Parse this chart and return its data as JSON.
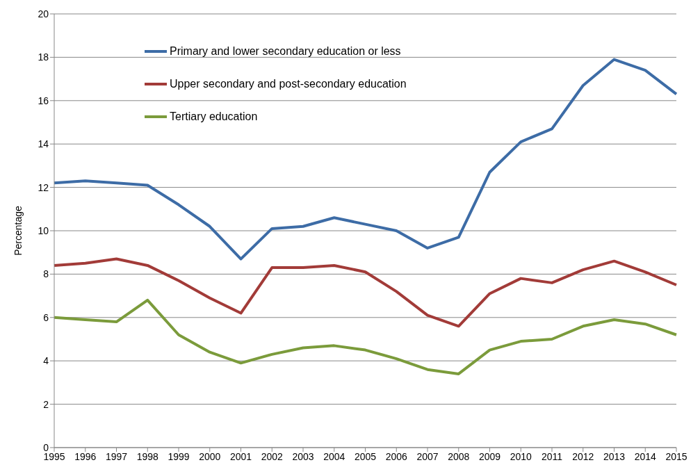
{
  "chart_data": {
    "type": "line",
    "ylabel": "Percentage",
    "categories": [
      "1995",
      "1996",
      "1997",
      "1998",
      "1999",
      "2000",
      "2001",
      "2002",
      "2003",
      "2004",
      "2005",
      "2006",
      "2007",
      "2008",
      "2009",
      "2010",
      "2011",
      "2012",
      "2013",
      "2014",
      "2015"
    ],
    "series": [
      {
        "name": "Primary and lower secondary education or less",
        "color": "#3d6ca6",
        "values": [
          12.2,
          12.3,
          12.2,
          12.1,
          11.2,
          10.2,
          8.7,
          10.1,
          10.2,
          10.6,
          10.3,
          10.0,
          9.2,
          9.7,
          12.7,
          14.1,
          14.7,
          16.7,
          17.9,
          17.4,
          16.3
        ]
      },
      {
        "name": "Upper secondary and post-secondary education",
        "color": "#a23b38",
        "values": [
          8.4,
          8.5,
          8.7,
          8.4,
          7.7,
          6.9,
          6.2,
          8.3,
          8.3,
          8.4,
          8.1,
          7.2,
          6.1,
          5.6,
          7.1,
          7.8,
          7.6,
          8.2,
          8.6,
          8.1,
          7.5
        ]
      },
      {
        "name": "Tertiary education",
        "color": "#7b9b3b",
        "values": [
          6.0,
          5.9,
          5.8,
          6.8,
          5.2,
          4.4,
          3.9,
          4.3,
          4.6,
          4.7,
          4.5,
          4.1,
          3.6,
          3.4,
          4.5,
          4.9,
          5.0,
          5.6,
          5.9,
          5.7,
          5.2
        ]
      }
    ],
    "ylim": [
      0,
      20
    ],
    "yticks": [
      0,
      2,
      4,
      6,
      8,
      10,
      12,
      14,
      16,
      18,
      20
    ],
    "grid": "y",
    "legend": "top left",
    "marker": "none",
    "line_style": "solid"
  }
}
